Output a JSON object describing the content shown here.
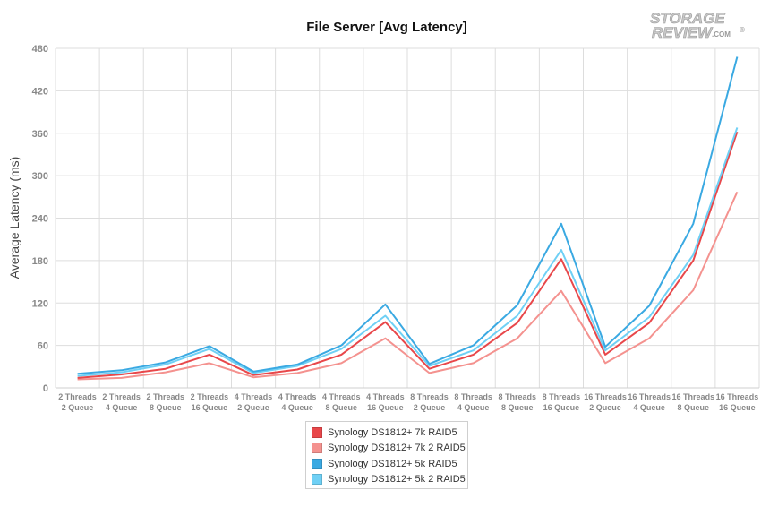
{
  "logo": {
    "line1": "STORAGE",
    "line2": "REVIEW",
    "suffix": ".COM",
    "mark": "®"
  },
  "chart_data": {
    "type": "line",
    "title": "File Server [Avg Latency]",
    "xlabel": "",
    "ylabel": "Average Latency (ms)",
    "ylim": [
      0,
      480
    ],
    "yticks": [
      0,
      60,
      120,
      180,
      240,
      300,
      360,
      420,
      480
    ],
    "grid": true,
    "legend_position": "bottom",
    "categories": [
      [
        "2 Threads",
        "2 Queue"
      ],
      [
        "2 Threads",
        "4 Queue"
      ],
      [
        "2 Threads",
        "8 Queue"
      ],
      [
        "2 Threads",
        "16 Queue"
      ],
      [
        "4 Threads",
        "2 Queue"
      ],
      [
        "4 Threads",
        "4 Queue"
      ],
      [
        "4 Threads",
        "8 Queue"
      ],
      [
        "4 Threads",
        "16 Queue"
      ],
      [
        "8 Threads",
        "2 Queue"
      ],
      [
        "8 Threads",
        "4 Queue"
      ],
      [
        "8 Threads",
        "8 Queue"
      ],
      [
        "8 Threads",
        "16 Queue"
      ],
      [
        "16 Threads",
        "2 Queue"
      ],
      [
        "16 Threads",
        "4 Queue"
      ],
      [
        "16 Threads",
        "8 Queue"
      ],
      [
        "16 Threads",
        "16 Queue"
      ]
    ],
    "series": [
      {
        "name": "Synology DS1812+ 7k RAID5",
        "color": "#e8474a",
        "values": [
          14,
          19,
          27,
          47,
          18,
          26,
          47,
          93,
          27,
          47,
          92,
          182,
          47,
          92,
          180,
          362
        ]
      },
      {
        "name": "Synology DS1812+ 7k 2 RAID5",
        "color": "#f4928f",
        "values": [
          12,
          14,
          22,
          35,
          15,
          21,
          35,
          70,
          21,
          35,
          70,
          137,
          35,
          70,
          138,
          277
        ]
      },
      {
        "name": "Synology DS1812+ 5k RAID5",
        "color": "#3aa9e2",
        "values": [
          20,
          25,
          36,
          59,
          23,
          33,
          60,
          118,
          34,
          60,
          117,
          232,
          58,
          116,
          232,
          468
        ]
      },
      {
        "name": "Synology DS1812+ 5k 2 RAID5",
        "color": "#6fd0f5",
        "values": [
          17,
          22,
          33,
          55,
          21,
          31,
          55,
          102,
          31,
          53,
          102,
          195,
          53,
          100,
          188,
          368
        ]
      }
    ]
  }
}
